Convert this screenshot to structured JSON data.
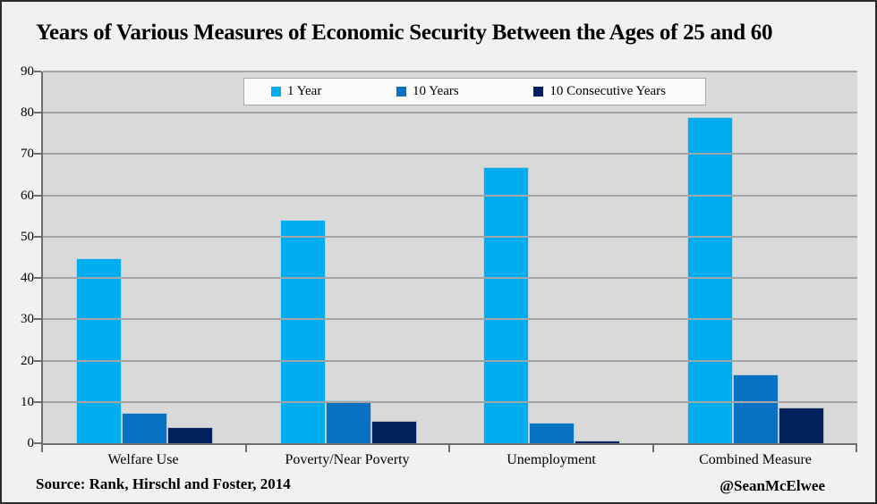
{
  "title": "Years of Various Measures of Economic Security Between the Ages of 25 and 60",
  "source": "Source: Rank, Hirschl and Foster, 2014",
  "credit": "@SeanMcElwee",
  "colors": {
    "outer_background": "#F1F1EF",
    "plot_background": "#D9D9D9",
    "gridline": "#A5A5A5",
    "axis": "#6E6E6E",
    "legend_background": "#FAFAF8",
    "series_1_year": "#00AEEF",
    "series_10_years": "#0772C4",
    "series_10_consecutive_years": "#01215C"
  },
  "chart_data": {
    "type": "bar",
    "title": "Years of Various Measures of Economic Security Between the Ages of 25 and 60",
    "categories": [
      "Welfare Use",
      "Poverty/Near Poverty",
      "Unemployment",
      "Combined Measure"
    ],
    "series": [
      {
        "name": "1 Year",
        "color": "#00AEEF",
        "values": [
          44.8,
          54.1,
          66.8,
          79.0
        ]
      },
      {
        "name": "10 Years",
        "color": "#0772C4",
        "values": [
          7.3,
          10.4,
          5.0,
          16.7
        ]
      },
      {
        "name": "10 Consecutive Years",
        "color": "#01215C",
        "values": [
          3.8,
          5.5,
          0.7,
          8.6
        ]
      }
    ],
    "xlabel": "",
    "ylabel": "",
    "ylim": [
      0,
      90
    ],
    "yticks": [
      0,
      10,
      20,
      30,
      40,
      50,
      60,
      70,
      80,
      90
    ],
    "grid": true,
    "legend_position": "top-center"
  }
}
